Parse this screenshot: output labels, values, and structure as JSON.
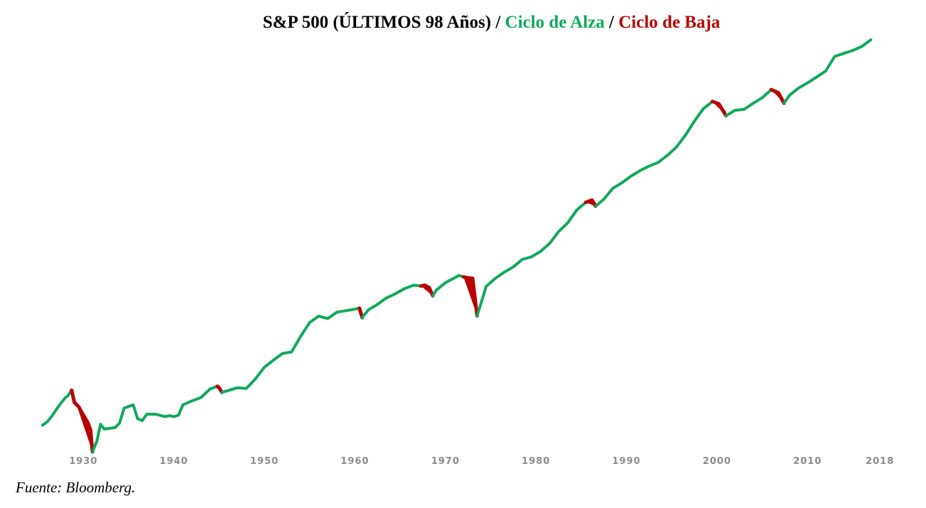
{
  "title": {
    "main": "S&P 500 (ÚLTIMOS 98 Años)",
    "sep1": " / ",
    "bull_label": "Ciclo de Alza",
    "sep2": " / ",
    "bear_label": "Ciclo de Baja"
  },
  "source": "Fuente: Bloomberg.",
  "chart_data": {
    "type": "line",
    "title": "S&P 500 (ÚLTIMOS 98 Años) / Ciclo de Alza / Ciclo de Baja",
    "xlabel": "",
    "ylabel": "",
    "y_scale": "log",
    "y_axis_visible": false,
    "grid": false,
    "x_ticks": [
      "1930",
      "1940",
      "1950",
      "1960",
      "1970",
      "1980",
      "1990",
      "2000",
      "2010",
      "2018"
    ],
    "x_range": [
      1925.5,
      2018.3
    ],
    "y_range_relative": [
      0,
      1
    ],
    "colors": {
      "bull": "#0fa95a",
      "bear": "#b80000"
    },
    "series": [
      {
        "name": "Ciclo de Alza",
        "values": [
          [
            1925.5,
            0.088
          ],
          [
            1926.0,
            0.099
          ],
          [
            1926.5,
            0.117
          ],
          [
            1927.0,
            0.139
          ],
          [
            1927.5,
            0.16
          ],
          [
            1928.0,
            0.178
          ],
          [
            1928.3,
            0.185
          ],
          [
            1928.7,
            0.203
          ]
        ]
      },
      {
        "name": "Ciclo de Baja",
        "values": [
          [
            1928.7,
            0.203
          ],
          [
            1929.0,
            0.163
          ],
          [
            1929.5,
            0.148
          ],
          [
            1930.0,
            0.121
          ],
          [
            1930.5,
            0.096
          ],
          [
            1930.8,
            0.071
          ],
          [
            1931.0,
            0.0
          ]
        ]
      },
      {
        "name": "Ciclo de Alza",
        "values": [
          [
            1931.0,
            0.0
          ],
          [
            1931.5,
            0.036
          ],
          [
            1931.9,
            0.091
          ],
          [
            1932.3,
            0.075
          ],
          [
            1933.5,
            0.08
          ],
          [
            1934.0,
            0.095
          ],
          [
            1934.5,
            0.144
          ],
          [
            1935.5,
            0.155
          ],
          [
            1936.0,
            0.109
          ],
          [
            1936.5,
            0.103
          ],
          [
            1937.0,
            0.124
          ],
          [
            1938.0,
            0.124
          ],
          [
            1939.0,
            0.116
          ],
          [
            1939.5,
            0.119
          ],
          [
            1940.0,
            0.116
          ],
          [
            1940.5,
            0.121
          ],
          [
            1941.0,
            0.155
          ],
          [
            1942.0,
            0.168
          ],
          [
            1943.0,
            0.179
          ],
          [
            1944.0,
            0.207
          ],
          [
            1944.8,
            0.216
          ]
        ]
      },
      {
        "name": "Ciclo de Baja",
        "values": [
          [
            1944.8,
            0.216
          ],
          [
            1945.0,
            0.211
          ],
          [
            1945.3,
            0.196
          ]
        ]
      },
      {
        "name": "Ciclo de Alza",
        "values": [
          [
            1945.3,
            0.196
          ],
          [
            1946.0,
            0.202
          ],
          [
            1947.0,
            0.211
          ],
          [
            1948.0,
            0.209
          ],
          [
            1949.0,
            0.24
          ],
          [
            1950.0,
            0.279
          ],
          [
            1951.0,
            0.302
          ],
          [
            1952.0,
            0.324
          ],
          [
            1953.0,
            0.329
          ],
          [
            1954.0,
            0.38
          ],
          [
            1955.0,
            0.426
          ],
          [
            1956.0,
            0.447
          ],
          [
            1957.0,
            0.439
          ],
          [
            1958.0,
            0.46
          ],
          [
            1959.0,
            0.465
          ],
          [
            1960.0,
            0.47
          ],
          [
            1960.5,
            0.473
          ]
        ]
      },
      {
        "name": "Ciclo de Baja",
        "values": [
          [
            1960.5,
            0.473
          ],
          [
            1960.8,
            0.442
          ]
        ]
      },
      {
        "name": "Ciclo de Alza",
        "values": [
          [
            1960.8,
            0.442
          ],
          [
            1961.5,
            0.468
          ],
          [
            1962.5,
            0.486
          ],
          [
            1963.5,
            0.507
          ],
          [
            1964.5,
            0.521
          ],
          [
            1965.5,
            0.538
          ],
          [
            1966.5,
            0.549
          ],
          [
            1967.3,
            0.546
          ]
        ]
      },
      {
        "name": "Ciclo de Baja",
        "values": [
          [
            1967.3,
            0.546
          ],
          [
            1967.7,
            0.549
          ],
          [
            1968.2,
            0.541
          ],
          [
            1968.6,
            0.514
          ]
        ]
      },
      {
        "name": "Ciclo de Alza",
        "values": [
          [
            1968.6,
            0.514
          ],
          [
            1969.0,
            0.533
          ],
          [
            1970.0,
            0.557
          ],
          [
            1971.0,
            0.573
          ],
          [
            1971.5,
            0.581
          ],
          [
            1972.0,
            0.576
          ]
        ]
      },
      {
        "name": "Ciclo de Baja",
        "values": [
          [
            1972.0,
            0.576
          ],
          [
            1972.5,
            0.573
          ],
          [
            1973.0,
            0.571
          ],
          [
            1973.5,
            0.448
          ]
        ]
      },
      {
        "name": "Ciclo de Alza",
        "values": [
          [
            1973.5,
            0.448
          ],
          [
            1974.5,
            0.545
          ],
          [
            1975.5,
            0.571
          ],
          [
            1976.5,
            0.592
          ],
          [
            1977.5,
            0.609
          ],
          [
            1978.5,
            0.634
          ],
          [
            1979.5,
            0.642
          ],
          [
            1980.5,
            0.66
          ],
          [
            1981.5,
            0.686
          ],
          [
            1982.5,
            0.725
          ],
          [
            1983.5,
            0.754
          ],
          [
            1984.5,
            0.796
          ],
          [
            1985.5,
            0.822
          ]
        ]
      },
      {
        "name": "Ciclo de Baja",
        "values": [
          [
            1985.5,
            0.822
          ],
          [
            1986.2,
            0.829
          ],
          [
            1986.6,
            0.809
          ]
        ]
      },
      {
        "name": "Ciclo de Alza",
        "values": [
          [
            1986.6,
            0.809
          ],
          [
            1987.5,
            0.832
          ],
          [
            1988.5,
            0.868
          ],
          [
            1989.5,
            0.886
          ],
          [
            1990.5,
            0.908
          ],
          [
            1991.5,
            0.926
          ],
          [
            1992.5,
            0.941
          ],
          [
            1993.5,
            0.953
          ],
          [
            1994.5,
            0.976
          ],
          [
            1995.5,
            1.003
          ],
          [
            1996.5,
            1.042
          ],
          [
            1997.5,
            1.089
          ],
          [
            1998.5,
            1.13
          ],
          [
            1999.5,
            1.154
          ]
        ]
      },
      {
        "name": "Ciclo de Baja",
        "values": [
          [
            1999.5,
            1.154
          ],
          [
            2000.2,
            1.146
          ],
          [
            2000.7,
            1.122
          ],
          [
            2001.0,
            1.107
          ]
        ]
      },
      {
        "name": "Ciclo de Alza",
        "values": [
          [
            2001.0,
            1.107
          ],
          [
            2002.0,
            1.125
          ],
          [
            2003.0,
            1.128
          ],
          [
            2004.0,
            1.148
          ],
          [
            2005.0,
            1.166
          ],
          [
            2006.0,
            1.193
          ]
        ]
      },
      {
        "name": "Ciclo de Baja",
        "values": [
          [
            2006.0,
            1.193
          ],
          [
            2006.8,
            1.182
          ],
          [
            2007.4,
            1.148
          ]
        ]
      },
      {
        "name": "Ciclo de Alza",
        "values": [
          [
            2007.4,
            1.148
          ],
          [
            2008.0,
            1.174
          ],
          [
            2009.0,
            1.198
          ],
          [
            2010.0,
            1.215
          ],
          [
            2011.0,
            1.234
          ],
          [
            2012.0,
            1.254
          ],
          [
            2013.0,
            1.302
          ],
          [
            2014.0,
            1.312
          ],
          [
            2015.0,
            1.322
          ],
          [
            2016.0,
            1.335
          ],
          [
            2017.0,
            1.357
          ]
        ]
      }
    ]
  }
}
